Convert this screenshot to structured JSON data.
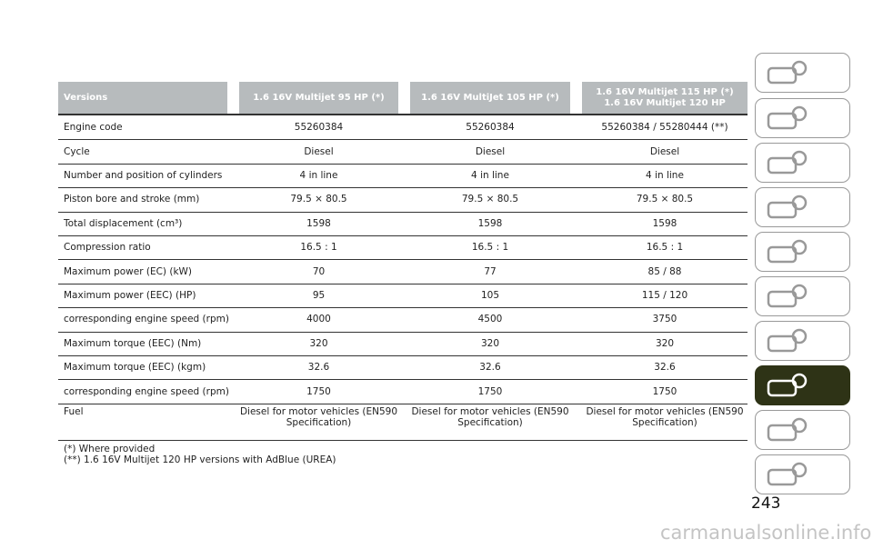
{
  "table": {
    "header": [
      "Versions",
      "1.6 16V Multijet 95 HP (*)",
      "1.6 16V MultiJet 105 HP (*)",
      "1.6 16V Multijet 115 HP (*) 1.6 16V Multijet 120 HP"
    ],
    "rows": [
      [
        "Engine code",
        "55260384",
        "55260384",
        "55260384 / 55280444 (**)"
      ],
      [
        "Cycle",
        "Diesel",
        "Diesel",
        "Diesel"
      ],
      [
        "Number and position of cylinders",
        "4 in line",
        "4 in line",
        "4 in line"
      ],
      [
        "Piston bore and stroke (mm)",
        "79.5 × 80.5",
        "79.5 × 80.5",
        "79.5 × 80.5"
      ],
      [
        "Total displacement (cm³)",
        "1598",
        "1598",
        "1598"
      ],
      [
        "Compression ratio",
        "16.5 : 1",
        "16.5 : 1",
        "16.5 : 1"
      ],
      [
        "Maximum power (EC) (kW)",
        "70",
        "77",
        "85 / 88"
      ],
      [
        "Maximum power (EEC) (HP)",
        "95",
        "105",
        "115 / 120"
      ],
      [
        "corresponding engine speed (rpm)",
        "4000",
        "4500",
        "3750"
      ],
      [
        "Maximum torque (EEC) (Nm)",
        "320",
        "320",
        "320"
      ],
      [
        "Maximum torque (EEC) (kgm)",
        "32.6",
        "32.6",
        "32.6"
      ],
      [
        "corresponding engine speed (rpm)",
        "1750",
        "1750",
        "1750"
      ],
      [
        "Fuel",
        "Diesel for motor vehicles (EN590 Specification)",
        "Diesel for motor vehicles (EN590 Specification)",
        "Diesel for motor vehicles (EN590 Specification)"
      ]
    ],
    "footnotes": [
      "(*) Where provided",
      "(**) 1.6 16V Multijet 120 HP versions with AdBlue (UREA)"
    ]
  },
  "page_number": "243",
  "watermark": "carmanualsonline.info"
}
